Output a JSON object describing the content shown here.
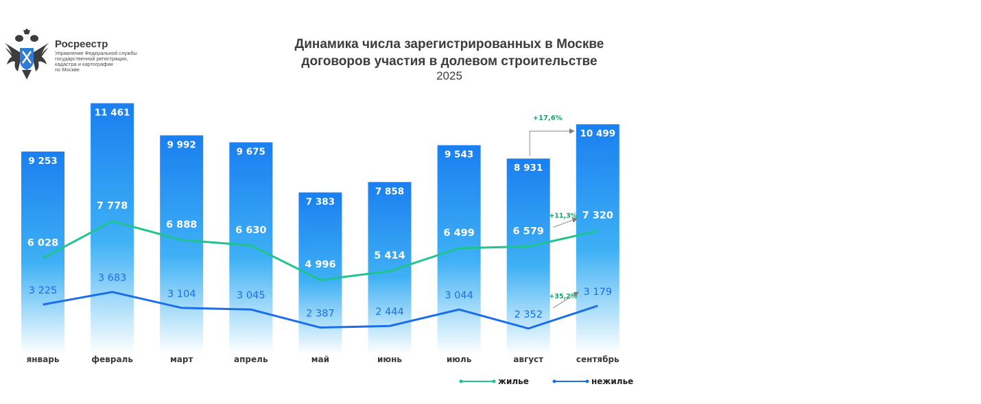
{
  "logo": {
    "name": "Росреестр",
    "lines": [
      "Управление Федеральной службы",
      "государственной регистрации,",
      "кадастра и картографии",
      "по Москве"
    ]
  },
  "header": {
    "title_line1": "Динамика числа зарегистрированных в Москве",
    "title_line2": "договоров участия в долевом строительстве",
    "subtitle": "2025"
  },
  "chart_data": {
    "type": "bar",
    "categories": [
      "январь",
      "февраль",
      "март",
      "апрель",
      "май",
      "июнь",
      "июль",
      "август",
      "сентябрь"
    ],
    "series": [
      {
        "values": [
          9253,
          11461,
          9992,
          9675,
          7383,
          7858,
          9543,
          8931,
          10499
        ],
        "labels": [
          "9 253",
          "11 461",
          "9 992",
          "9 675",
          "7 383",
          "7 858",
          "9 543",
          "8 931",
          "10 499"
        ],
        "color": "#1a86f0"
      },
      {
        "name": "жилье",
        "type": "line",
        "values": [
          6028,
          7778,
          6888,
          6630,
          4996,
          5414,
          6499,
          6579,
          7320
        ],
        "labels": [
          "6 028",
          "7 778",
          "6 888",
          "6 630",
          "4 996",
          "5 414",
          "6 499",
          "6 579",
          "7 320"
        ],
        "color": "#1ec48e"
      },
      {
        "name": "нежилье",
        "type": "line",
        "values": [
          3225,
          3683,
          3104,
          3045,
          2387,
          2444,
          3044,
          2352,
          3179
        ],
        "labels": [
          "3 225",
          "3 683",
          "3 104",
          "3 045",
          "2 387",
          "2 444",
          "3 044",
          "2 352",
          "3 179"
        ],
        "color": "#1a6ee8"
      }
    ],
    "annotations": [
      {
        "text": "+17,6%",
        "from": "август",
        "to": "сентябрь",
        "series": "total"
      },
      {
        "text": "+11,3%",
        "from": "август",
        "to": "сентябрь",
        "series": "жилье"
      },
      {
        "text": "+35,2%",
        "from": "август",
        "to": "сентябрь",
        "series": "нежилье"
      }
    ],
    "legend": {
      "position": "bottom-right",
      "items": [
        "жилье",
        "нежилье"
      ]
    },
    "colors": {
      "bar_top": "#1a7ff0",
      "bar_bottom": "#ffffff",
      "green": "#1ec48e",
      "blue": "#1a6ee8",
      "annotation_green": "#17a06a"
    }
  }
}
